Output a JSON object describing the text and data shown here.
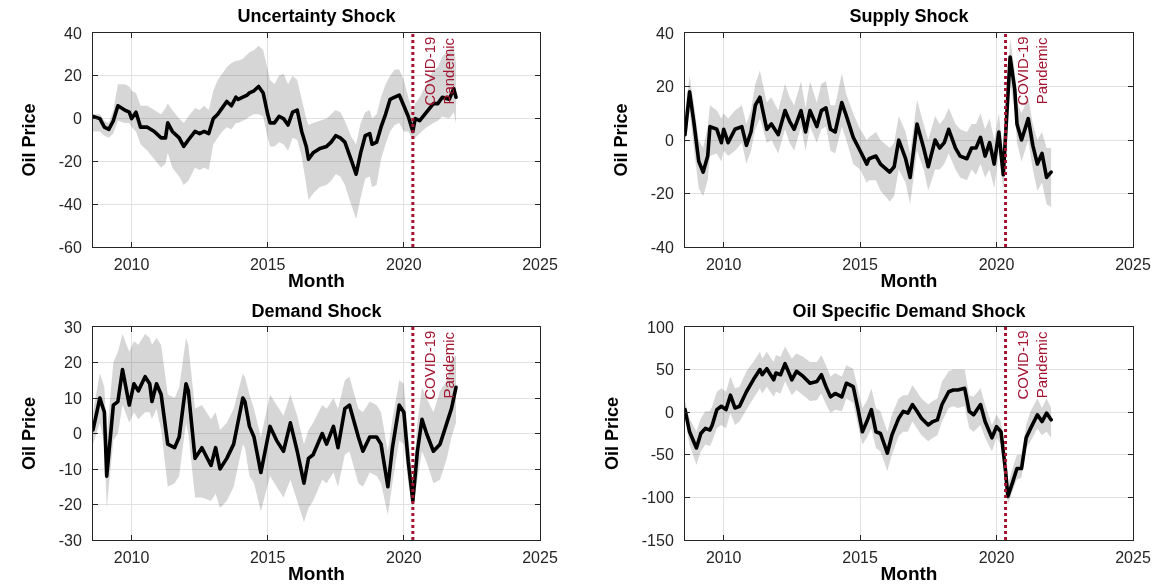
{
  "chart_data": [
    {
      "type": "line",
      "title": "Uncertainty Shock",
      "xlabel": "Month",
      "ylabel": "Oil Price",
      "grid": true,
      "xlim": [
        "2008-08",
        "2025"
      ],
      "xticks": [
        "2010",
        "2015",
        "2020",
        "2025"
      ],
      "ylim": [
        -60,
        40
      ],
      "yticks": [
        -60,
        -40,
        -20,
        0,
        20,
        40
      ],
      "x": [
        "2008-08",
        "2008-11",
        "2009-01",
        "2009-03",
        "2009-05",
        "2009-07",
        "2009-10",
        "2009-12",
        "2010-01",
        "2010-03",
        "2010-05",
        "2010-08",
        "2010-11",
        "2011-02",
        "2011-04",
        "2011-05",
        "2011-07",
        "2011-10",
        "2011-12",
        "2012-02",
        "2012-05",
        "2012-07",
        "2012-09",
        "2012-11",
        "2013-01",
        "2013-03",
        "2013-05",
        "2013-07",
        "2013-09",
        "2013-11",
        "2013-12",
        "2014-02",
        "2014-04",
        "2014-05",
        "2014-07",
        "2014-09",
        "2014-11",
        "2015-01",
        "2015-02",
        "2015-04",
        "2015-06",
        "2015-08",
        "2015-10",
        "2015-12",
        "2016-02",
        "2016-04",
        "2016-06",
        "2016-07",
        "2016-09",
        "2016-12",
        "2017-03",
        "2017-05",
        "2017-07",
        "2017-09",
        "2017-11",
        "2018-02",
        "2018-04",
        "2018-06",
        "2018-08",
        "2018-10",
        "2018-11",
        "2019-01",
        "2019-03",
        "2019-05",
        "2019-07",
        "2019-09",
        "2019-11",
        "2020-01",
        "2020-03",
        "2020-05",
        "2020-06",
        "2020-08",
        "2020-11",
        "2021-02",
        "2021-04",
        "2021-06",
        "2021-09",
        "2021-11",
        "2021-12"
      ],
      "series": [
        {
          "color": "#000000",
          "values": [
            1,
            0,
            -4,
            -5,
            -1,
            6,
            4,
            3,
            0,
            3,
            -4,
            -4,
            -6,
            -9,
            -9,
            -2,
            -6,
            -9,
            -13,
            -10,
            -6,
            -7,
            -6,
            -7,
            0,
            2,
            5,
            8,
            6,
            10,
            9,
            10,
            11,
            12,
            13,
            15,
            12,
            2,
            -2,
            -2,
            1,
            0,
            -3,
            3,
            4,
            -6,
            -13,
            -19,
            -16,
            -14,
            -13,
            -11,
            -8,
            -9,
            -11,
            -20,
            -26,
            -16,
            -8,
            -7,
            -12,
            -11,
            -4,
            2,
            9,
            10,
            11,
            6,
            1,
            -6,
            0,
            -1,
            3,
            7,
            7,
            10,
            9,
            14,
            10
          ],
          "upper": [
            2,
            2,
            -1,
            -2,
            4,
            16,
            16,
            15,
            13,
            12,
            6,
            6,
            4,
            2,
            5,
            7,
            4,
            0,
            -2,
            1,
            5,
            4,
            6,
            4,
            13,
            18,
            21,
            24,
            26,
            27,
            27,
            28,
            30,
            31,
            32,
            34,
            32,
            23,
            18,
            16,
            20,
            21,
            16,
            20,
            18,
            9,
            0,
            -3,
            -2,
            -1,
            0,
            2,
            4,
            3,
            -1,
            -9,
            -12,
            -2,
            3,
            4,
            0,
            2,
            10,
            16,
            20,
            23,
            23,
            18,
            10,
            3,
            7,
            10,
            16,
            23,
            24,
            29,
            32,
            34,
            26
          ],
          "lower": [
            -6,
            -6,
            -8,
            -9,
            -7,
            -1,
            -2,
            -2,
            -4,
            -6,
            -12,
            -15,
            -19,
            -23,
            -21,
            -16,
            -23,
            -27,
            -31,
            -29,
            -23,
            -24,
            -23,
            -24,
            -12,
            -9,
            -6,
            -4,
            -5,
            -2,
            -2,
            -1,
            0,
            1,
            2,
            2,
            1,
            -9,
            -13,
            -13,
            -11,
            -12,
            -15,
            -9,
            -10,
            -18,
            -31,
            -38,
            -35,
            -32,
            -31,
            -29,
            -26,
            -27,
            -31,
            -41,
            -47,
            -37,
            -28,
            -27,
            -32,
            -31,
            -19,
            -12,
            -6,
            -3,
            -2,
            -6,
            -6,
            -10,
            -9,
            -7,
            -4,
            -2,
            -1,
            1,
            0,
            3,
            -2
          ]
        }
      ],
      "ref_lines": [
        {
          "axis": "x",
          "value": "2020-05",
          "label": "COVID-19\nPandemic",
          "color": "#a2142f",
          "line_style": "dotted"
        }
      ]
    },
    {
      "type": "line",
      "title": "Supply Shock",
      "xlabel": "Month",
      "ylabel": "Oil Price",
      "grid": true,
      "xlim": [
        "2008-08",
        "2025"
      ],
      "xticks": [
        "2010",
        "2015",
        "2020",
        "2025"
      ],
      "ylim": [
        -40,
        40
      ],
      "yticks": [
        -40,
        -20,
        0,
        20,
        40
      ],
      "x": [
        "2008-08",
        "2008-10",
        "2008-12",
        "2009-02",
        "2009-04",
        "2009-06",
        "2009-07",
        "2009-10",
        "2009-12",
        "2010-01",
        "2010-03",
        "2010-06",
        "2010-09",
        "2010-11",
        "2011-01",
        "2011-03",
        "2011-05",
        "2011-08",
        "2011-10",
        "2012-01",
        "2012-04",
        "2012-06",
        "2012-08",
        "2012-11",
        "2013-01",
        "2013-03",
        "2013-06",
        "2013-08",
        "2013-10",
        "2013-12",
        "2014-02",
        "2014-05",
        "2014-07",
        "2014-10",
        "2015-01",
        "2015-04",
        "2015-05",
        "2015-08",
        "2015-10",
        "2016-02",
        "2016-04",
        "2016-06",
        "2016-09",
        "2016-11",
        "2017-02",
        "2017-05",
        "2017-07",
        "2017-10",
        "2017-12",
        "2018-02",
        "2018-04",
        "2018-07",
        "2018-09",
        "2018-12",
        "2019-02",
        "2019-04",
        "2019-06",
        "2019-08",
        "2019-10",
        "2019-12",
        "2020-02",
        "2020-04",
        "2020-07",
        "2020-09",
        "2020-10",
        "2020-12",
        "2021-03",
        "2021-05",
        "2021-07",
        "2021-09",
        "2021-11",
        "2022-01"
      ],
      "series": [
        {
          "color": "#000000",
          "values": [
            2,
            18,
            6,
            -8,
            -12,
            -6,
            5,
            4,
            -1,
            4,
            -1,
            4,
            5,
            -2,
            3,
            13,
            16,
            4,
            6,
            2,
            11,
            7,
            4,
            11,
            3,
            11,
            5,
            11,
            12,
            4,
            3,
            14,
            9,
            1,
            -4,
            -9,
            -7,
            -6,
            -9,
            -12,
            -10,
            0,
            -7,
            -14,
            6,
            -3,
            -10,
            0,
            -3,
            -1,
            4,
            -3,
            -6,
            -7,
            -3,
            -3,
            1,
            -6,
            -1,
            -9,
            3,
            -13,
            31,
            19,
            6,
            0,
            8,
            -2,
            -9,
            -5,
            -14,
            -12
          ],
          "upper": [
            10,
            24,
            13,
            0,
            -3,
            5,
            13,
            11,
            8,
            10,
            8,
            11,
            13,
            6,
            11,
            21,
            26,
            14,
            16,
            11,
            21,
            16,
            13,
            22,
            12,
            22,
            14,
            21,
            22,
            13,
            13,
            25,
            17,
            10,
            4,
            0,
            1,
            3,
            0,
            -3,
            -1,
            9,
            3,
            -5,
            15,
            6,
            0,
            9,
            6,
            8,
            12,
            6,
            4,
            3,
            6,
            6,
            10,
            4,
            8,
            0,
            10,
            -5,
            38,
            26,
            14,
            10,
            16,
            6,
            0,
            3,
            -3,
            -3
          ],
          "lower": [
            -2,
            11,
            -4,
            -18,
            -21,
            -15,
            -6,
            -5,
            -8,
            -4,
            -6,
            -4,
            -1,
            -9,
            -4,
            4,
            8,
            -1,
            0,
            -5,
            4,
            -1,
            -4,
            5,
            -4,
            5,
            -1,
            4,
            5,
            -4,
            -5,
            5,
            0,
            -9,
            -11,
            -16,
            -15,
            -15,
            -19,
            -23,
            -21,
            -11,
            -16,
            -24,
            -4,
            -11,
            -19,
            -11,
            -11,
            -9,
            -5,
            -11,
            -14,
            -15,
            -11,
            -13,
            -9,
            -14,
            -11,
            -18,
            -5,
            -19,
            21,
            11,
            -1,
            -8,
            0,
            -11,
            -19,
            -16,
            -24,
            -25
          ]
        }
      ],
      "ref_lines": [
        {
          "axis": "x",
          "value": "2020-05",
          "label": "COVID-19\nPandemic",
          "color": "#a2142f",
          "line_style": "dotted"
        }
      ]
    },
    {
      "type": "line",
      "title": "Demand Shock",
      "xlabel": "Month",
      "ylabel": "Oil Price",
      "grid": true,
      "xlim": [
        "2008-08",
        "2025"
      ],
      "xticks": [
        "2010",
        "2015",
        "2020",
        "2025"
      ],
      "ylim": [
        -30,
        30
      ],
      "yticks": [
        -30,
        -20,
        -10,
        0,
        10,
        20,
        30
      ],
      "x": [
        "2008-08",
        "2008-11",
        "2009-01",
        "2009-02",
        "2009-05",
        "2009-07",
        "2009-09",
        "2009-12",
        "2010-02",
        "2010-04",
        "2010-07",
        "2010-09",
        "2010-10",
        "2010-12",
        "2011-02",
        "2011-05",
        "2011-08",
        "2011-10",
        "2012-01",
        "2012-02",
        "2012-05",
        "2012-08",
        "2012-12",
        "2013-02",
        "2013-04",
        "2013-07",
        "2013-10",
        "2014-02",
        "2014-03",
        "2014-05",
        "2014-07",
        "2014-10",
        "2015-02",
        "2015-05",
        "2015-08",
        "2015-11",
        "2016-02",
        "2016-05",
        "2016-07",
        "2016-09",
        "2017-01",
        "2017-03",
        "2017-06",
        "2017-08",
        "2017-11",
        "2018-01",
        "2018-05",
        "2018-07",
        "2018-10",
        "2019-01",
        "2019-03",
        "2019-06",
        "2019-08",
        "2019-11",
        "2020-01",
        "2020-03",
        "2020-05",
        "2020-07",
        "2020-09",
        "2020-11",
        "2021-02",
        "2021-05",
        "2021-08",
        "2021-10",
        "2021-12"
      ],
      "series": [
        {
          "color": "#000000",
          "values": [
            1,
            10,
            6,
            -12,
            8,
            9,
            18,
            8,
            14,
            12,
            16,
            14,
            9,
            14,
            11,
            -3,
            -4,
            -1,
            14,
            12,
            -7,
            -4,
            -9,
            -4,
            -10,
            -7,
            -3,
            10,
            9,
            2,
            -1,
            -11,
            2,
            -2,
            -5,
            3,
            -5,
            -14,
            -7,
            -6,
            0,
            -3,
            2,
            -4,
            7,
            8,
            -1,
            -5,
            -1,
            -1,
            -3,
            -15,
            -4,
            8,
            6,
            -8,
            -19,
            -5,
            4,
            0,
            -5,
            -3,
            3,
            7,
            13
          ],
          "upper": [
            6,
            17,
            13,
            -1,
            20,
            23,
            28,
            23,
            26,
            25,
            28,
            27,
            25,
            27,
            25,
            11,
            10,
            13,
            27,
            25,
            7,
            8,
            4,
            6,
            1,
            3,
            7,
            17,
            16,
            11,
            7,
            -1,
            11,
            8,
            5,
            11,
            5,
            -3,
            1,
            3,
            8,
            7,
            10,
            7,
            15,
            16,
            7,
            6,
            9,
            8,
            6,
            -5,
            4,
            15,
            14,
            -1,
            -13,
            3,
            13,
            10,
            6,
            12,
            15,
            21,
            22
          ],
          "lower": [
            -3,
            3,
            -3,
            -21,
            -2,
            0,
            8,
            3,
            6,
            4,
            6,
            6,
            4,
            7,
            1,
            -15,
            -14,
            -12,
            3,
            0,
            -18,
            -18,
            -19,
            -17,
            -21,
            -19,
            -15,
            -3,
            -4,
            -12,
            -14,
            -22,
            -12,
            -15,
            -18,
            -13,
            -19,
            -25,
            -21,
            -19,
            -13,
            -14,
            -11,
            -15,
            -6,
            -5,
            -14,
            -15,
            -11,
            -12,
            -14,
            -23,
            -14,
            -2,
            -3,
            -14,
            -21,
            -13,
            -5,
            -8,
            -14,
            -13,
            -7,
            -1,
            3
          ]
        }
      ],
      "ref_lines": [
        {
          "axis": "x",
          "value": "2020-05",
          "label": "COVID-19\nPandemic",
          "color": "#a2142f",
          "line_style": "dotted"
        }
      ]
    },
    {
      "type": "line",
      "title": "Oil Specific Demand Shock",
      "xlabel": "Month",
      "ylabel": "Oil Price",
      "grid": true,
      "xlim": [
        "2008-08",
        "2025"
      ],
      "xticks": [
        "2010",
        "2015",
        "2020",
        "2025"
      ],
      "ylim": [
        -150,
        100
      ],
      "yticks": [
        -150,
        -100,
        -50,
        0,
        50,
        100
      ],
      "x": [
        "2008-08",
        "2008-10",
        "2009-01",
        "2009-03",
        "2009-05",
        "2009-07",
        "2009-08",
        "2009-10",
        "2009-12",
        "2010-02",
        "2010-04",
        "2010-06",
        "2010-08",
        "2010-11",
        "2011-02",
        "2011-05",
        "2011-06",
        "2011-08",
        "2011-11",
        "2011-12",
        "2012-02",
        "2012-04",
        "2012-07",
        "2012-09",
        "2012-12",
        "2013-03",
        "2013-06",
        "2013-08",
        "2013-10",
        "2013-12",
        "2014-02",
        "2014-05",
        "2014-07",
        "2014-10",
        "2014-12",
        "2015-02",
        "2015-04",
        "2015-06",
        "2015-08",
        "2015-10",
        "2016-01",
        "2016-03",
        "2016-06",
        "2016-08",
        "2016-10",
        "2016-12",
        "2017-02",
        "2017-04",
        "2017-07",
        "2017-09",
        "2017-11",
        "2018-01",
        "2018-04",
        "2018-06",
        "2018-08",
        "2018-11",
        "2019-01",
        "2019-03",
        "2019-06",
        "2019-08",
        "2019-11",
        "2020-01",
        "2020-03",
        "2020-05",
        "2020-06",
        "2020-08",
        "2020-10",
        "2020-12",
        "2021-02",
        "2021-04",
        "2021-07",
        "2021-09",
        "2021-11",
        "2022-01"
      ],
      "series": [
        {
          "color": "#000000",
          "values": [
            3,
            -23,
            -42,
            -25,
            -19,
            -21,
            -15,
            3,
            7,
            3,
            20,
            5,
            7,
            24,
            38,
            50,
            44,
            51,
            38,
            46,
            44,
            57,
            38,
            48,
            42,
            34,
            36,
            44,
            30,
            18,
            22,
            18,
            34,
            30,
            5,
            -23,
            -11,
            3,
            -23,
            -25,
            -48,
            -27,
            -7,
            1,
            -1,
            9,
            1,
            -7,
            -15,
            -11,
            -9,
            9,
            24,
            26,
            26,
            28,
            1,
            -3,
            9,
            -11,
            -30,
            -17,
            -23,
            -69,
            -99,
            -83,
            -66,
            -66,
            -30,
            -19,
            -3,
            -11,
            -1,
            -9
          ],
          "upper": [
            13,
            -7,
            -23,
            -7,
            1,
            1,
            7,
            24,
            28,
            24,
            42,
            28,
            30,
            48,
            59,
            71,
            63,
            71,
            59,
            67,
            65,
            77,
            63,
            69,
            65,
            59,
            59,
            67,
            55,
            42,
            46,
            42,
            55,
            51,
            28,
            5,
            13,
            28,
            5,
            1,
            -23,
            -3,
            16,
            20,
            20,
            32,
            24,
            16,
            9,
            13,
            16,
            36,
            48,
            50,
            50,
            50,
            20,
            18,
            28,
            9,
            -15,
            -3,
            -11,
            -58,
            -87,
            -66,
            -50,
            -50,
            -15,
            1,
            16,
            5,
            16,
            5
          ],
          "lower": [
            -7,
            -38,
            -62,
            -46,
            -38,
            -40,
            -34,
            -19,
            -15,
            -19,
            -1,
            -15,
            -11,
            3,
            16,
            28,
            22,
            30,
            18,
            24,
            22,
            36,
            20,
            26,
            20,
            13,
            14,
            22,
            9,
            -1,
            3,
            1,
            16,
            11,
            -15,
            -38,
            -30,
            -19,
            -42,
            -46,
            -69,
            -50,
            -28,
            -23,
            -23,
            -11,
            -19,
            -27,
            -34,
            -30,
            -27,
            -11,
            5,
            7,
            5,
            7,
            -19,
            -23,
            -15,
            -30,
            -46,
            -30,
            -38,
            -81,
            -108,
            -93,
            -79,
            -77,
            -42,
            -34,
            -19,
            -27,
            -23,
            -30
          ]
        }
      ],
      "ref_lines": [
        {
          "axis": "x",
          "value": "2020-05",
          "label": "COVID-19\nPandemic",
          "color": "#a2142f",
          "line_style": "dotted"
        }
      ]
    }
  ]
}
